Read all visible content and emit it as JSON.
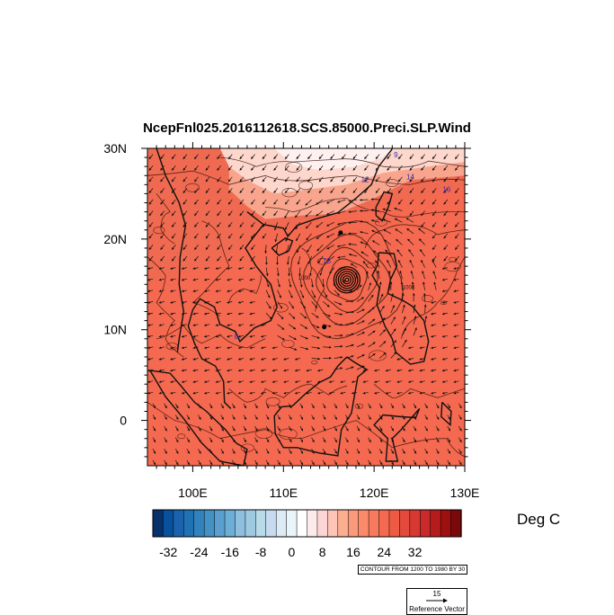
{
  "title": "NcepFnl025.2016112618.SCS.85000.Preci.SLP.Wind",
  "map": {
    "lon_range": [
      95,
      130
    ],
    "lat_range": [
      -5,
      30
    ],
    "x_ticks": [
      {
        "value": 100,
        "label": "100E"
      },
      {
        "value": 110,
        "label": "110E"
      },
      {
        "value": 120,
        "label": "120E"
      },
      {
        "value": 130,
        "label": "130E"
      }
    ],
    "y_ticks": [
      {
        "value": 30,
        "label": "30N"
      },
      {
        "value": 20,
        "label": "20N"
      },
      {
        "value": 10,
        "label": "10N"
      },
      {
        "value": 0,
        "label": "0"
      }
    ],
    "typhoon_center": {
      "lon": 117.0,
      "lat": 15.5
    },
    "contour_labels": [
      {
        "text": "9",
        "lon": 122.4,
        "lat": 29.0
      },
      {
        "text": "12",
        "lon": 119.0,
        "lat": 26.3
      },
      {
        "text": "14",
        "lon": 124.0,
        "lat": 26.6
      },
      {
        "text": "16",
        "lon": 128.0,
        "lat": 25.2
      },
      {
        "text": "15",
        "lon": 114.8,
        "lat": 17.3
      },
      {
        "text": "8",
        "lon": 104.8,
        "lat": 9.0
      },
      {
        "text": "1000",
        "lon": 112.3,
        "lat": 15.5
      },
      {
        "text": "1008",
        "lon": 123.8,
        "lat": 14.5
      }
    ]
  },
  "colorbar": {
    "colors": [
      "#08306b",
      "#08519c",
      "#1a62ad",
      "#2171b5",
      "#3182bd",
      "#4292c6",
      "#5a9fd0",
      "#6baed6",
      "#8ebfdf",
      "#9ecae1",
      "#b8dbe9",
      "#c6dbef",
      "#dcebf5",
      "#eaf4fb",
      "#ffffff",
      "#fdeaea",
      "#fdd5d5",
      "#fcc5b7",
      "#fcae91",
      "#fb9a7a",
      "#fb8a6a",
      "#f77a5e",
      "#f4694f",
      "#ef5a44",
      "#e34a3b",
      "#d73830",
      "#c92a2a",
      "#b71c1c",
      "#9e1010",
      "#7a0a0a"
    ],
    "tick_values": [
      -32,
      -24,
      -16,
      -8,
      0,
      8,
      16,
      24,
      32
    ],
    "tick_labels": [
      "-32",
      "-24",
      "-16",
      "-8",
      "0",
      "8",
      "16",
      "24",
      "32"
    ],
    "units": "Deg C"
  },
  "contour_info": "CONTOUR FROM 1200 TO 1980 BY 30",
  "reference_vector": {
    "magnitude": "15",
    "label": "Reference Vector"
  },
  "colors": {
    "ocean_fill": "#f4694f",
    "warm_land": "#ef6a50",
    "cool_north": "#fdd6cc",
    "cold_north": "#fdf0ef"
  }
}
